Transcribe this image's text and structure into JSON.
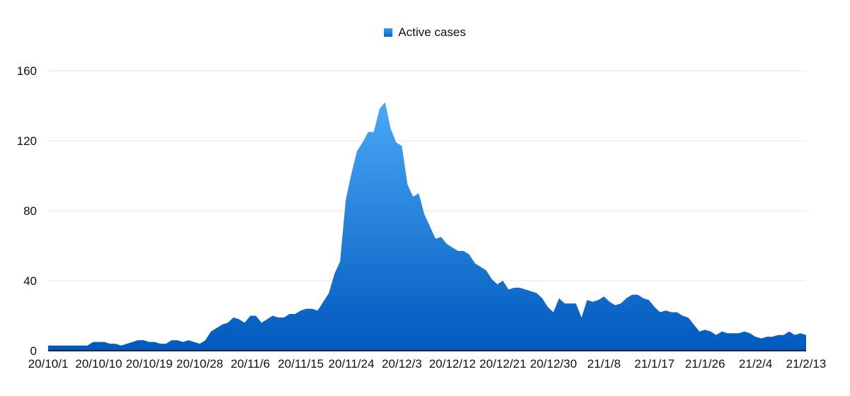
{
  "chart_data": {
    "type": "area",
    "legend": {
      "label": "Active cases",
      "position": "top-center"
    },
    "colors": {
      "fill_top": "#4aa8f5",
      "fill_bottom": "#0059bd",
      "grid": "#e3e3e3",
      "axis": "#000000"
    },
    "grid": true,
    "ylim": [
      0,
      160
    ],
    "yticks": [
      0,
      40,
      80,
      120,
      160
    ],
    "x_start": "2020-10-01",
    "x_end": "2021-02-13",
    "xtick_labels": [
      {
        "date": "2020-10-01",
        "label": "20/10/1"
      },
      {
        "date": "2020-10-10",
        "label": "20/10/10"
      },
      {
        "date": "2020-10-19",
        "label": "20/10/19"
      },
      {
        "date": "2020-10-28",
        "label": "20/10/28"
      },
      {
        "date": "2020-11-06",
        "label": "20/11/6"
      },
      {
        "date": "2020-11-15",
        "label": "20/11/15"
      },
      {
        "date": "2020-11-24",
        "label": "20/11/24"
      },
      {
        "date": "2020-12-03",
        "label": "20/12/3"
      },
      {
        "date": "2020-12-12",
        "label": "20/12/12"
      },
      {
        "date": "2020-12-21",
        "label": "20/12/21"
      },
      {
        "date": "2020-12-30",
        "label": "20/12/30"
      },
      {
        "date": "2021-01-08",
        "label": "21/1/8"
      },
      {
        "date": "2021-01-17",
        "label": "21/1/17"
      },
      {
        "date": "2021-01-26",
        "label": "21/1/26"
      },
      {
        "date": "2021-02-04",
        "label": "21/2/4"
      },
      {
        "date": "2021-02-13",
        "label": "21/2/13"
      }
    ],
    "series": [
      {
        "name": "Active cases",
        "values": [
          3,
          3,
          3,
          3,
          3,
          3,
          3,
          3,
          5,
          5,
          5,
          4,
          4,
          3,
          4,
          5,
          6,
          6,
          5,
          5,
          4,
          4,
          6,
          6,
          5,
          6,
          5,
          4,
          6,
          11,
          13,
          15,
          16,
          19,
          18,
          16,
          20,
          20,
          16,
          18,
          20,
          19,
          19,
          21,
          21,
          23,
          24,
          24,
          23,
          28,
          33,
          44,
          51,
          86,
          101,
          114,
          119,
          125,
          125,
          138,
          142,
          127,
          119,
          117,
          95,
          88,
          90,
          78,
          71,
          64,
          65,
          61,
          59,
          57,
          57,
          55,
          50,
          48,
          46,
          41,
          38,
          40,
          35,
          36,
          36,
          35,
          34,
          33,
          30,
          25,
          22,
          30,
          27,
          27,
          27,
          19,
          29,
          28,
          29,
          31,
          28,
          26,
          27,
          30,
          32,
          32,
          30,
          29,
          25,
          22,
          23,
          22,
          22,
          20,
          19,
          15,
          11,
          12,
          11,
          9,
          11,
          10,
          10,
          10,
          11,
          10,
          8,
          7,
          8,
          8,
          9,
          9,
          11,
          9,
          10,
          9
        ]
      }
    ]
  }
}
